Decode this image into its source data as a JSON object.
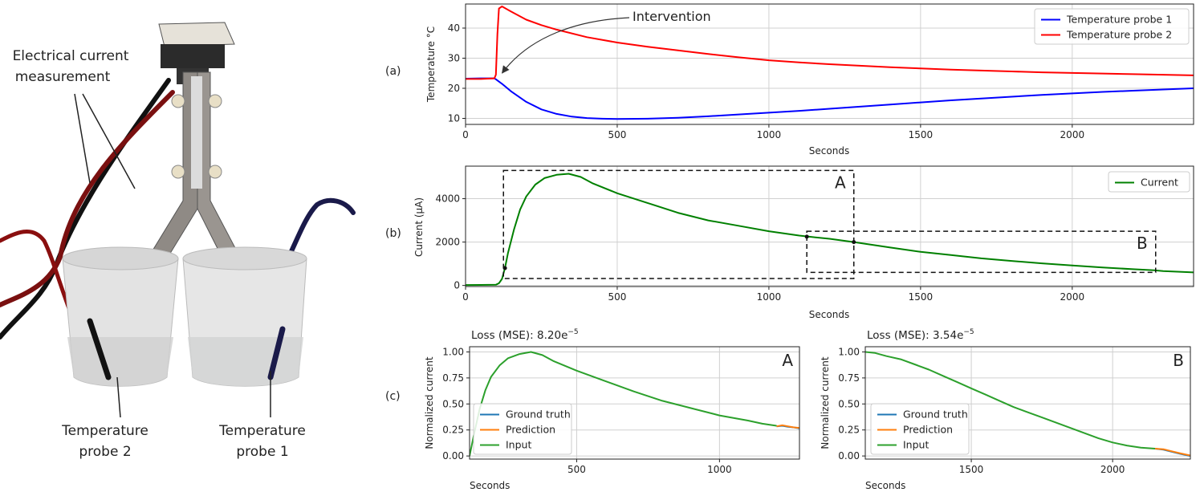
{
  "photo": {
    "labels": {
      "current_line1": "Electrical current",
      "current_line2": "measurement",
      "probe2_line1": "Temperature",
      "probe2_line2": "probe 2",
      "probe1_line1": "Temperature",
      "probe1_line2": "probe 1"
    }
  },
  "panels": {
    "a": "(a)",
    "b": "(b)",
    "c": "(c)"
  },
  "chart_data": [
    {
      "id": "a",
      "type": "line",
      "xlabel": "Seconds",
      "ylabel": "Temperature °C",
      "xlim": [
        0,
        2400
      ],
      "ylim": [
        8,
        48
      ],
      "xticks": [
        0,
        500,
        1000,
        1500,
        2000
      ],
      "yticks": [
        10,
        20,
        30,
        40
      ],
      "grid": true,
      "legend": "top-right",
      "annotation": {
        "text": "Intervention",
        "x": 110,
        "y": 24
      },
      "series": [
        {
          "name": "Temperature probe 1",
          "color": "#0000ff",
          "x": [
            0,
            50,
            95,
            100,
            120,
            150,
            200,
            250,
            300,
            350,
            400,
            450,
            500,
            600,
            700,
            800,
            900,
            1000,
            1100,
            1200,
            1300,
            1400,
            1500,
            1600,
            1700,
            1800,
            1900,
            2000,
            2100,
            2200,
            2300,
            2400
          ],
          "y": [
            23.2,
            23.3,
            23.3,
            23.0,
            21.5,
            19.0,
            15.5,
            13.0,
            11.5,
            10.6,
            10.1,
            9.9,
            9.8,
            9.9,
            10.2,
            10.7,
            11.3,
            11.9,
            12.5,
            13.2,
            13.9,
            14.6,
            15.3,
            16.0,
            16.6,
            17.2,
            17.8,
            18.3,
            18.8,
            19.2,
            19.6,
            20.0
          ]
        },
        {
          "name": "Temperature probe 2",
          "color": "#ff0000",
          "x": [
            0,
            50,
            95,
            100,
            105,
            110,
            120,
            150,
            200,
            250,
            300,
            400,
            500,
            600,
            700,
            800,
            900,
            1000,
            1100,
            1200,
            1300,
            1400,
            1500,
            1600,
            1700,
            1800,
            1900,
            2000,
            2100,
            2200,
            2300,
            2400
          ],
          "y": [
            23.1,
            23.1,
            23.3,
            24.5,
            38.0,
            46.5,
            47.2,
            45.5,
            42.8,
            41.0,
            39.5,
            37.0,
            35.2,
            33.8,
            32.6,
            31.4,
            30.3,
            29.3,
            28.6,
            28.0,
            27.5,
            27.0,
            26.6,
            26.2,
            25.9,
            25.6,
            25.3,
            25.1,
            24.9,
            24.7,
            24.5,
            24.3
          ]
        }
      ]
    },
    {
      "id": "b",
      "type": "line",
      "xlabel": "Seconds",
      "ylabel": "Current (μA)",
      "xlim": [
        0,
        2400
      ],
      "ylim": [
        -50,
        5500
      ],
      "xticks": [
        0,
        500,
        1000,
        1500,
        2000
      ],
      "yticks": [
        0,
        2000,
        4000
      ],
      "grid": true,
      "legend": "top-right",
      "series": [
        {
          "name": "Current",
          "color": "#008000",
          "x": [
            0,
            50,
            100,
            110,
            120,
            130,
            140,
            160,
            180,
            200,
            230,
            260,
            300,
            340,
            380,
            420,
            500,
            600,
            700,
            800,
            900,
            1000,
            1100,
            1130,
            1200,
            1280,
            1400,
            1500,
            1600,
            1700,
            1800,
            1900,
            2000,
            2100,
            2200,
            2270,
            2300,
            2400
          ],
          "y": [
            20,
            25,
            30,
            100,
            300,
            800,
            1500,
            2600,
            3500,
            4100,
            4650,
            4950,
            5100,
            5150,
            5000,
            4700,
            4250,
            3800,
            3350,
            3000,
            2750,
            2500,
            2300,
            2250,
            2150,
            2000,
            1750,
            1550,
            1400,
            1250,
            1130,
            1020,
            920,
            830,
            750,
            700,
            660,
            600
          ]
        }
      ],
      "boxes": [
        {
          "label": "A",
          "x0": 125,
          "x1": 1280,
          "y0": 320,
          "y1": 5300,
          "marker_x": 130,
          "marker_y": 800
        },
        {
          "label": "B",
          "x0": 1125,
          "x1": 2275,
          "y0": 600,
          "y1": 2500,
          "marker_x": 1125,
          "marker_y": 2250
        }
      ],
      "box_marker_end": [
        1280,
        2000
      ]
    },
    {
      "id": "c-A",
      "type": "line",
      "title": "Loss (MSE): 8.20e",
      "title_exp": "−5",
      "corner_label": "A",
      "xlabel": "Seconds",
      "ylabel": "Normalized current",
      "xlim": [
        125,
        1280
      ],
      "ylim": [
        -0.03,
        1.05
      ],
      "xticks": [
        500,
        1000
      ],
      "yticks": [
        0.0,
        0.25,
        0.5,
        0.75,
        1.0
      ],
      "ytick_labels": [
        "0.00",
        "0.25",
        "0.50",
        "0.75",
        "1.00"
      ],
      "grid": true,
      "legend": "bottom-left",
      "series": [
        {
          "name": "Ground truth",
          "color": "#1f77b4",
          "x": [
            1200,
            1220,
            1240,
            1260,
            1280
          ],
          "y": [
            0.285,
            0.29,
            0.28,
            0.275,
            0.265
          ]
        },
        {
          "name": "Prediction",
          "color": "#ff7f0e",
          "x": [
            1200,
            1220,
            1240,
            1260,
            1280
          ],
          "y": [
            0.285,
            0.295,
            0.285,
            0.275,
            0.27
          ]
        },
        {
          "name": "Input",
          "color": "#2ca02c",
          "x": [
            125,
            140,
            160,
            180,
            200,
            230,
            260,
            300,
            340,
            380,
            420,
            500,
            600,
            700,
            800,
            900,
            1000,
            1100,
            1150,
            1200
          ],
          "y": [
            0.0,
            0.2,
            0.45,
            0.63,
            0.76,
            0.87,
            0.94,
            0.98,
            1.0,
            0.97,
            0.91,
            0.82,
            0.72,
            0.62,
            0.53,
            0.46,
            0.39,
            0.34,
            0.31,
            0.29
          ]
        }
      ]
    },
    {
      "id": "c-B",
      "type": "line",
      "title": "Loss (MSE): 3.54e",
      "title_exp": "−5",
      "corner_label": "B",
      "xlabel": "Seconds",
      "ylabel": "Normalized current",
      "xlim": [
        1125,
        2275
      ],
      "ylim": [
        -0.03,
        1.05
      ],
      "xticks": [
        1500,
        2000
      ],
      "yticks": [
        0.0,
        0.25,
        0.5,
        0.75,
        1.0
      ],
      "ytick_labels": [
        "0.00",
        "0.25",
        "0.50",
        "0.75",
        "1.00"
      ],
      "grid": true,
      "legend": "bottom-left",
      "series": [
        {
          "name": "Ground truth",
          "color": "#1f77b4",
          "x": [
            2150,
            2180,
            2210,
            2240,
            2275
          ],
          "y": [
            0.07,
            0.06,
            0.04,
            0.02,
            0.0
          ]
        },
        {
          "name": "Prediction",
          "color": "#ff7f0e",
          "x": [
            2150,
            2180,
            2210,
            2240,
            2275
          ],
          "y": [
            0.07,
            0.065,
            0.045,
            0.025,
            0.005
          ]
        },
        {
          "name": "Input",
          "color": "#2ca02c",
          "x": [
            1125,
            1160,
            1200,
            1250,
            1300,
            1350,
            1400,
            1450,
            1500,
            1550,
            1600,
            1650,
            1700,
            1750,
            1800,
            1850,
            1900,
            1950,
            2000,
            2050,
            2100,
            2150
          ],
          "y": [
            1.0,
            0.99,
            0.96,
            0.93,
            0.88,
            0.83,
            0.77,
            0.71,
            0.65,
            0.59,
            0.53,
            0.47,
            0.42,
            0.37,
            0.32,
            0.27,
            0.22,
            0.17,
            0.13,
            0.1,
            0.08,
            0.07
          ]
        }
      ]
    }
  ]
}
